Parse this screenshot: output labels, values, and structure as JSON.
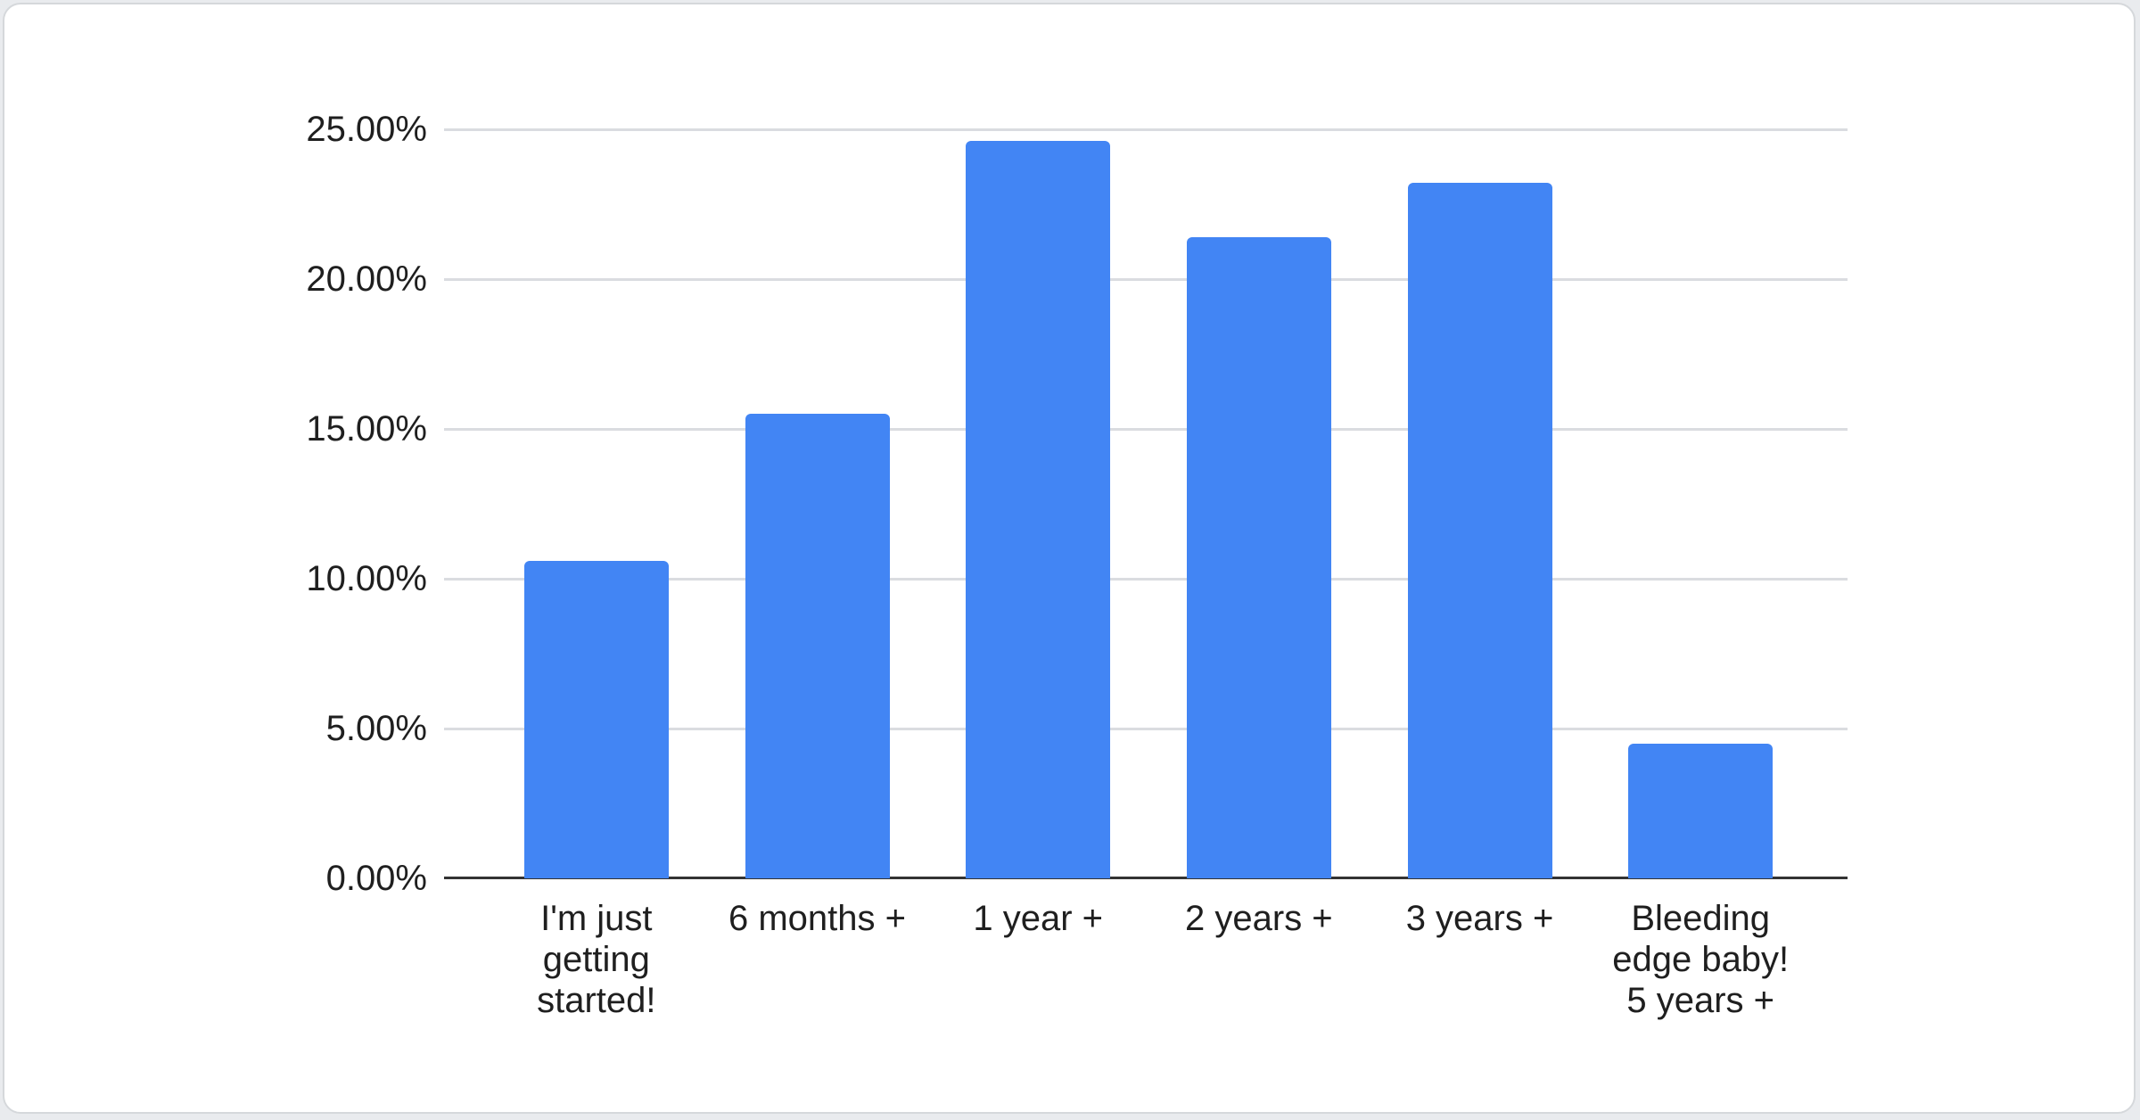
{
  "page": {
    "background_color": "#e9ebee"
  },
  "card": {
    "background_color": "#ffffff",
    "border_color": "#d5d8db"
  },
  "chart_data": {
    "type": "bar",
    "title": "",
    "xlabel": "",
    "ylabel": "",
    "categories": [
      "I'm just\ngetting\nstarted!",
      "6 months +",
      "1 year +",
      "2 years +",
      "3 years +",
      "Bleeding\nedge baby!\n5 years +"
    ],
    "values": [
      10.6,
      15.5,
      24.6,
      21.4,
      23.2,
      4.5
    ],
    "value_unit": "%",
    "ylim": [
      0,
      25
    ],
    "ytick_labels": [
      "0.00%",
      "5.00%",
      "10.00%",
      "15.00%",
      "20.00%",
      "25.00%"
    ],
    "grid": true,
    "legend": "none",
    "bar_color": "#4285f4",
    "gridline_color": "#dadce0",
    "axis_line_color": "#333333",
    "label_color": "#1f1f1f"
  }
}
